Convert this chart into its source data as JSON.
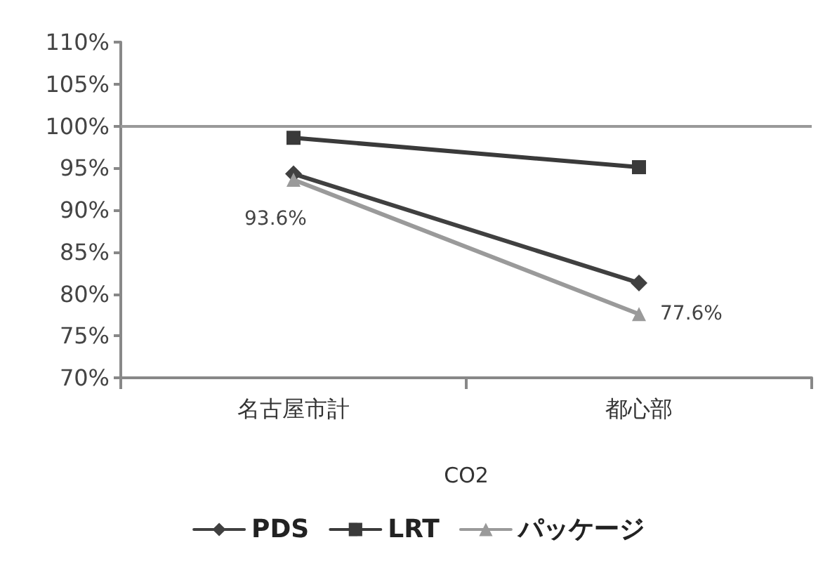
{
  "chart_data": {
    "type": "line",
    "xlabel": "CO2",
    "categories": [
      "名古屋市計",
      "都心部"
    ],
    "series": [
      {
        "name": "PDS",
        "color": "#404040",
        "marker": "diamond",
        "values": [
          94.3,
          81.3
        ]
      },
      {
        "name": "LRT",
        "color": "#3a3a3a",
        "marker": "square",
        "values": [
          98.6,
          95.1
        ]
      },
      {
        "name": "パッケージ",
        "color": "#9a9a9a",
        "marker": "triangle",
        "values": [
          93.6,
          77.6
        ],
        "value_labels": [
          "93.6%",
          "77.6%"
        ]
      }
    ],
    "ylim": [
      70,
      110
    ],
    "yticks": [
      {
        "value": 70,
        "label": "70%"
      },
      {
        "value": 75,
        "label": "75%"
      },
      {
        "value": 80,
        "label": "80%"
      },
      {
        "value": 85,
        "label": "85%"
      },
      {
        "value": 90,
        "label": "90%"
      },
      {
        "value": 95,
        "label": "95%"
      },
      {
        "value": 100,
        "label": "100%"
      },
      {
        "value": 105,
        "label": "105%"
      },
      {
        "value": 110,
        "label": "110%"
      }
    ],
    "ref_lines": [
      {
        "axis": "y",
        "value": 100,
        "color": "#999999"
      }
    ],
    "grid": false,
    "legend": "bottom"
  }
}
